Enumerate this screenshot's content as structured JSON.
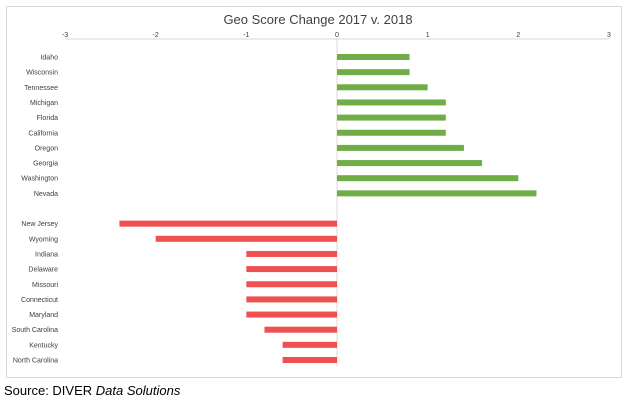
{
  "chart_data": {
    "type": "bar",
    "orientation": "horizontal",
    "title": "Geo Score Change 2017 v. 2018",
    "xlim": [
      -3,
      3
    ],
    "xticks": [
      "-3",
      "-2",
      "-1",
      "0",
      "1",
      "2",
      "3"
    ],
    "grid": false,
    "categories": [
      "Idaho",
      "Wisconsin",
      "Tennessee",
      "Michigan",
      "Florida",
      "California",
      "Oregon",
      "Georgia",
      "Washington",
      "Nevada",
      "",
      "New Jersey",
      "Wyoming",
      "Indiana",
      "Delaware",
      "Missouri",
      "Connecticut",
      "Maryland",
      "South Carolina",
      "Kentucky",
      "North Carolina"
    ],
    "values": [
      0.8,
      0.8,
      1.0,
      1.2,
      1.2,
      1.2,
      1.4,
      1.6,
      2.0,
      2.2,
      null,
      -2.4,
      -2.0,
      -1.0,
      -1.0,
      -1.0,
      -1.0,
      -1.0,
      -0.8,
      -0.6,
      -0.6
    ],
    "colors": {
      "positive": "#70ad47",
      "negative": "#f05050",
      "axis": "#d9d9d9",
      "label": "#404040"
    }
  },
  "source": {
    "prefix": "Source: DIVER ",
    "italic": "Data Solutions"
  }
}
